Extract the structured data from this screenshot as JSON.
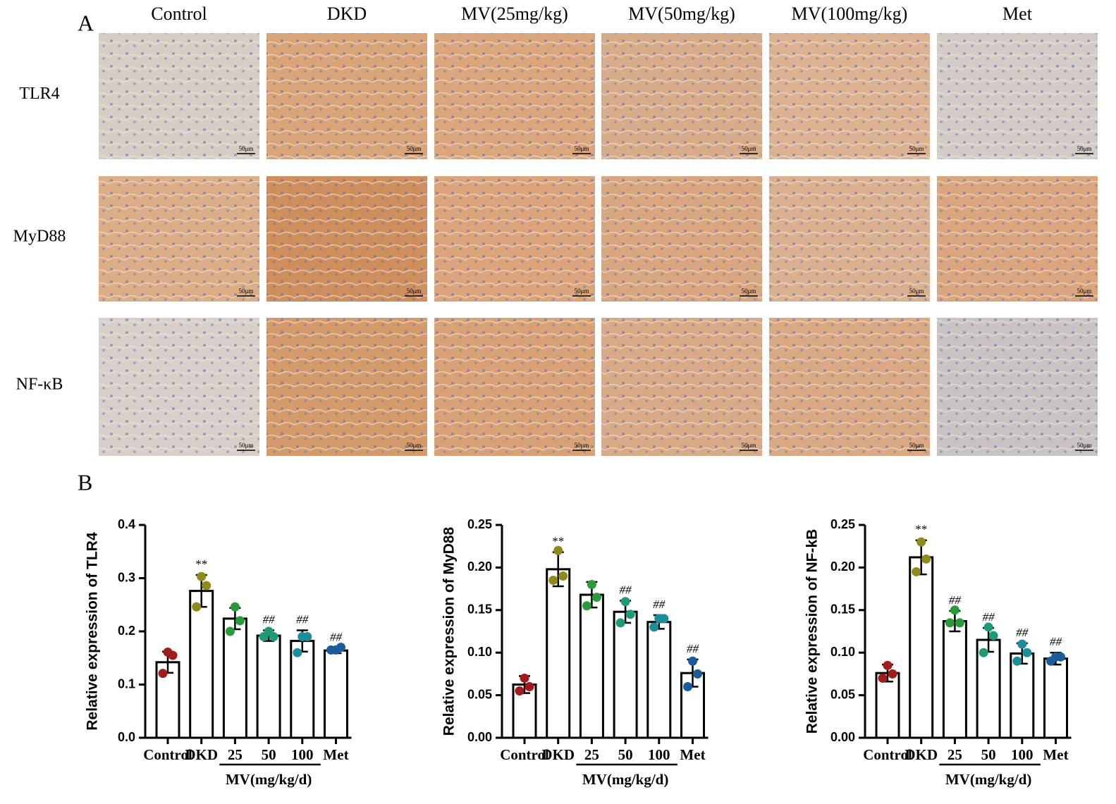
{
  "panel_a": {
    "label": "A",
    "columns": [
      "Control",
      "DKD",
      "MV(25mg/kg)",
      "MV(50mg/kg)",
      "MV(100mg/kg)",
      "Met"
    ],
    "rows": [
      "TLR4",
      "MyD88",
      "NF-κB"
    ],
    "scale_bar": "50μm"
  },
  "panel_b": {
    "label": "B"
  },
  "chart_data": [
    {
      "type": "bar",
      "y_label": "Relative expression of TLR4",
      "group_label": "MV(mg/kg/d)",
      "categories": [
        "Control",
        "DKD",
        "25",
        "50",
        "100",
        "Met"
      ],
      "values": [
        0.142,
        0.276,
        0.224,
        0.192,
        0.182,
        0.164
      ],
      "errors": [
        0.02,
        0.03,
        0.02,
        0.01,
        0.02,
        0.005
      ],
      "points": [
        [
          0.161,
          0.155,
          0.121
        ],
        [
          0.303,
          0.286,
          0.246
        ],
        [
          0.246,
          0.22,
          0.2
        ],
        [
          0.2,
          0.19,
          0.19
        ],
        [
          0.19,
          0.19,
          0.16
        ],
        [
          0.165,
          0.17,
          0.165
        ]
      ],
      "point_colors": [
        "#a01c1c",
        "#8f8a1a",
        "#2b9a3a",
        "#1f9a78",
        "#1a8f9a",
        "#1a5c9a"
      ],
      "significance": [
        null,
        "**",
        null,
        "##",
        "##",
        "##"
      ],
      "ylim": [
        0,
        0.4
      ],
      "yticks": [
        {
          "value": 0,
          "label": "0.0"
        },
        0.1,
        0.2,
        0.3,
        0.4
      ]
    },
    {
      "type": "bar",
      "y_label": "Relative expression of MyD88",
      "group_label": "MV(mg/kg/d)",
      "categories": [
        "Control",
        "DKD",
        "25",
        "50",
        "100",
        "Met"
      ],
      "values": [
        0.0625,
        0.198,
        0.168,
        0.148,
        0.136,
        0.076
      ],
      "errors": [
        0.01,
        0.02,
        0.015,
        0.013,
        0.008,
        0.016
      ],
      "points": [
        [
          0.07,
          0.06,
          0.055
        ],
        [
          0.22,
          0.19,
          0.185
        ],
        [
          0.18,
          0.165,
          0.155
        ],
        [
          0.16,
          0.145,
          0.135
        ],
        [
          0.14,
          0.14,
          0.13
        ],
        [
          0.09,
          0.075,
          0.06
        ]
      ],
      "point_colors": [
        "#a01c1c",
        "#8f8a1a",
        "#2b9a3a",
        "#1f9a78",
        "#1a8f9a",
        "#1a5c9a"
      ],
      "significance": [
        null,
        "**",
        null,
        "##",
        "##",
        "##"
      ],
      "ylim": [
        0,
        0.25
      ],
      "yticks": [
        {
          "value": 0,
          "label": "0.00"
        },
        0.05,
        {
          "value": 0.1,
          "label": "0.10"
        },
        0.15,
        {
          "value": 0.2,
          "label": "0.20"
        },
        0.25
      ]
    },
    {
      "type": "bar",
      "y_label": "Relative expression of NF-kB",
      "group_label": "MV(mg/kg/d)",
      "categories": [
        "Control",
        "DKD",
        "25",
        "50",
        "100",
        "Met"
      ],
      "values": [
        0.076,
        0.212,
        0.137,
        0.115,
        0.099,
        0.093
      ],
      "errors": [
        0.01,
        0.02,
        0.012,
        0.014,
        0.012,
        0.007
      ],
      "points": [
        [
          0.085,
          0.075,
          0.07
        ],
        [
          0.23,
          0.21,
          0.195
        ],
        [
          0.15,
          0.135,
          0.135
        ],
        [
          0.13,
          0.12,
          0.1
        ],
        [
          0.11,
          0.1,
          0.09
        ],
        [
          0.095,
          0.095,
          0.09
        ]
      ],
      "point_colors": [
        "#a01c1c",
        "#8f8a1a",
        "#2b9a3a",
        "#1f9a78",
        "#1a8f9a",
        "#1a5c9a"
      ],
      "significance": [
        null,
        "**",
        "##",
        "##",
        "##",
        "##"
      ],
      "ylim": [
        0,
        0.25
      ],
      "yticks": [
        {
          "value": 0,
          "label": "0.00"
        },
        0.05,
        {
          "value": 0.1,
          "label": "0.10"
        },
        0.15,
        {
          "value": 0.2,
          "label": "0.20"
        },
        0.25
      ]
    }
  ]
}
